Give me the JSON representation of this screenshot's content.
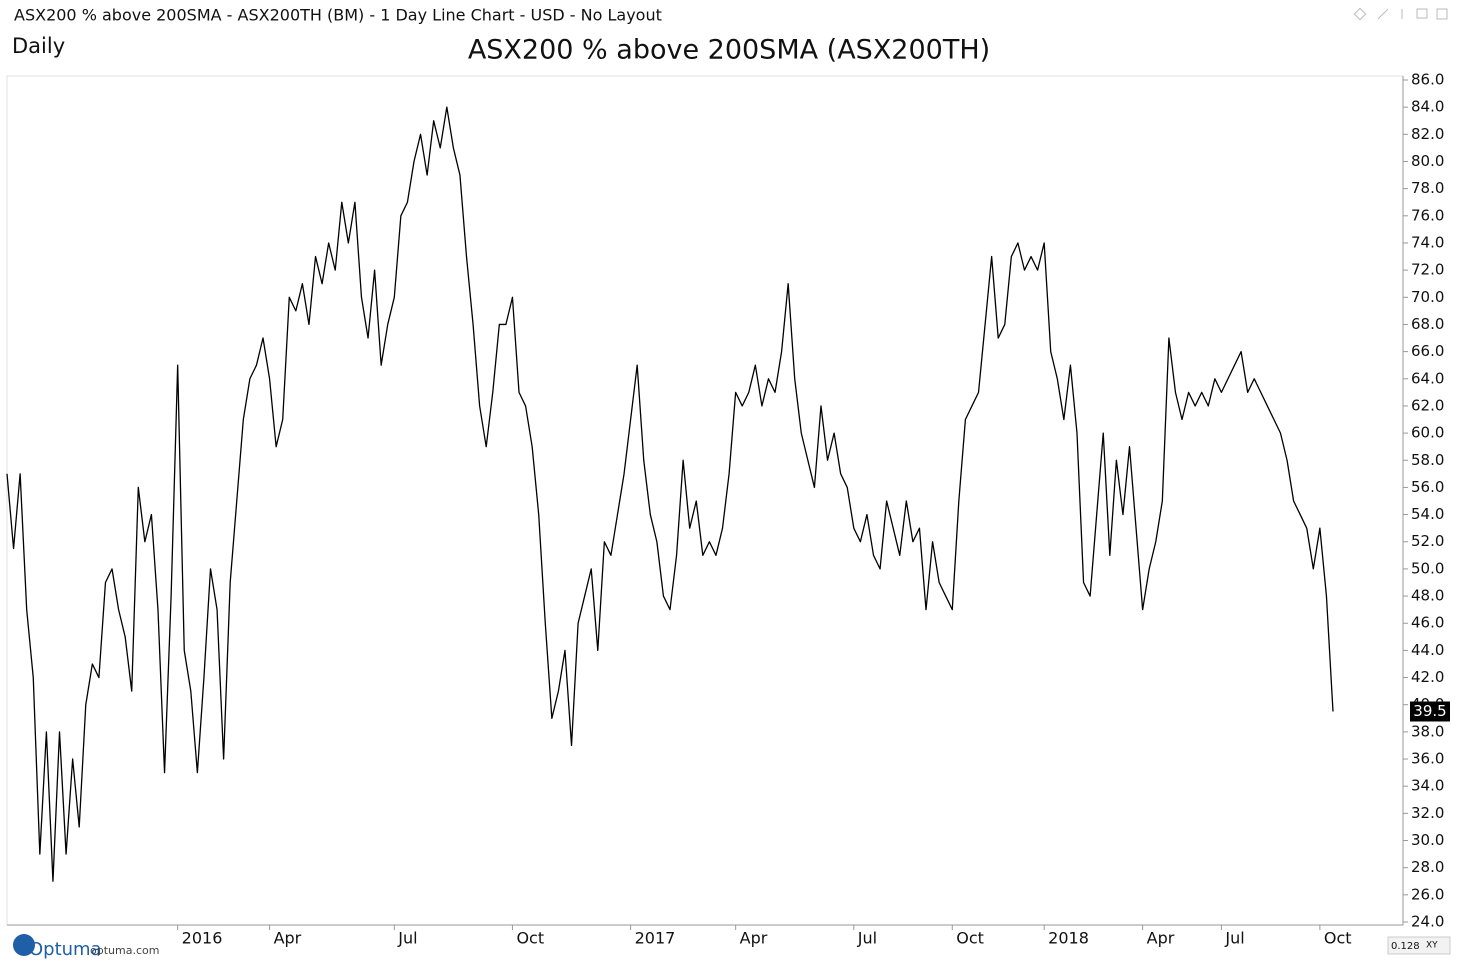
{
  "window": {
    "caption": "ASX200 % above 200SMA - ASX200TH (BM) - 1 Day Line Chart - USD - No Layout",
    "timeframe": "Daily"
  },
  "footer": {
    "brand": "Optuma",
    "site": "optuma.com",
    "scale": "0.128",
    "mode": "XY"
  },
  "chart_data": {
    "type": "line",
    "title": "ASX200 % above 200SMA (ASX200TH)",
    "color": "#000000",
    "categories": [
      null,
      null,
      null,
      null,
      null,
      null,
      null,
      null,
      null,
      null,
      null,
      null,
      null,
      null,
      null,
      null,
      null,
      null,
      null,
      null,
      null,
      null,
      null,
      null,
      null,
      null,
      "2016",
      null,
      null,
      null,
      null,
      null,
      null,
      null,
      null,
      null,
      null,
      null,
      null,
      null,
      "Apr",
      null,
      null,
      null,
      null,
      null,
      null,
      null,
      null,
      null,
      null,
      null,
      null,
      null,
      null,
      null,
      null,
      null,
      null,
      "Jul",
      null,
      null,
      null,
      null,
      null,
      null,
      null,
      null,
      null,
      null,
      null,
      null,
      null,
      null,
      null,
      null,
      null,
      "Oct",
      null,
      null,
      null,
      null,
      null,
      null,
      null,
      null,
      null,
      null,
      null,
      null,
      null,
      null,
      null,
      null,
      null,
      "2017",
      null,
      null,
      null,
      null,
      null,
      null,
      null,
      null,
      null,
      null,
      null,
      null,
      null,
      null,
      null,
      "Apr",
      null,
      null,
      null,
      null,
      null,
      null,
      null,
      null,
      null,
      null,
      null,
      null,
      null,
      null,
      null,
      null,
      null,
      "Jul",
      null,
      null,
      null,
      null,
      null,
      null,
      null,
      null,
      null,
      null,
      null,
      null,
      null,
      null,
      "Oct",
      null,
      null,
      null,
      null,
      null,
      null,
      null,
      null,
      null,
      null,
      null,
      null,
      null,
      "2018",
      null,
      null,
      null,
      null,
      null,
      null,
      null,
      null,
      null,
      null,
      null,
      null,
      null,
      null,
      "Apr",
      null,
      null,
      null,
      null,
      null,
      null,
      null,
      null,
      null,
      null,
      null,
      "Jul",
      null,
      null,
      null,
      null,
      null,
      null,
      null,
      null,
      null,
      null,
      null,
      null,
      null,
      null,
      "Oct",
      null,
      null
    ],
    "values": [
      57,
      51.5,
      57,
      47,
      42,
      29,
      38,
      27,
      38,
      29,
      36,
      31,
      40,
      43,
      42,
      49,
      50,
      47,
      45,
      41,
      56,
      52,
      54,
      47,
      35,
      48,
      65,
      44,
      41,
      35,
      42,
      50,
      47,
      36,
      49,
      55,
      61,
      64,
      65,
      67,
      64,
      59,
      61,
      70,
      69,
      71,
      68,
      73,
      71,
      74,
      72,
      77,
      74,
      77,
      70,
      67,
      72,
      65,
      68,
      70,
      76,
      77,
      80,
      82,
      79,
      83,
      81,
      84,
      81,
      79,
      73,
      68,
      62,
      59,
      63,
      68,
      68,
      70,
      63,
      62,
      59,
      54,
      46,
      39,
      41,
      44,
      37,
      46,
      48,
      50,
      44,
      52,
      51,
      54,
      57,
      61,
      65,
      58,
      54,
      52,
      48,
      47,
      51,
      58,
      53,
      55,
      51,
      52,
      51,
      53,
      57,
      63,
      62,
      63,
      65,
      62,
      64,
      63,
      66,
      71,
      64,
      60,
      58,
      56,
      62,
      58,
      60,
      57,
      56,
      53,
      52,
      54,
      51,
      50,
      55,
      53,
      51,
      55,
      52,
      53,
      47,
      52,
      49,
      48,
      47,
      55,
      61,
      62,
      63,
      68,
      73,
      67,
      68,
      73,
      74,
      72,
      73,
      72,
      74,
      66,
      64,
      61,
      65,
      60,
      49,
      48,
      54,
      60,
      51,
      58,
      54,
      59,
      53,
      47,
      50,
      52,
      55,
      67,
      63,
      61,
      63,
      62,
      63,
      62,
      64,
      63,
      64,
      65,
      66,
      63,
      64,
      63,
      62,
      61,
      60,
      58,
      55,
      54,
      53,
      50,
      53,
      48,
      39.5
    ],
    "ylim": [
      24,
      86
    ],
    "yticks": [
      {
        "value": 24,
        "label": "24.0"
      },
      {
        "value": 26,
        "label": "26.0"
      },
      {
        "value": 28,
        "label": "28.0"
      },
      {
        "value": 30,
        "label": "30.0"
      },
      {
        "value": 32,
        "label": "32.0"
      },
      {
        "value": 34,
        "label": "34.0"
      },
      {
        "value": 36,
        "label": "36.0"
      },
      {
        "value": 38,
        "label": "38.0"
      },
      {
        "value": 40,
        "label": "40.0"
      },
      {
        "value": 42,
        "label": "42.0"
      },
      {
        "value": 44,
        "label": "44.0"
      },
      {
        "value": 46,
        "label": "46.0"
      },
      {
        "value": 48,
        "label": "48.0"
      },
      {
        "value": 50,
        "label": "50.0"
      },
      {
        "value": 52,
        "label": "52.0"
      },
      {
        "value": 54,
        "label": "54.0"
      },
      {
        "value": 56,
        "label": "56.0"
      },
      {
        "value": 58,
        "label": "58.0"
      },
      {
        "value": 60,
        "label": "60.0"
      },
      {
        "value": 62,
        "label": "62.0"
      },
      {
        "value": 64,
        "label": "64.0"
      },
      {
        "value": 66,
        "label": "66.0"
      },
      {
        "value": 68,
        "label": "68.0"
      },
      {
        "value": 70,
        "label": "70.0"
      },
      {
        "value": 72,
        "label": "72.0"
      },
      {
        "value": 74,
        "label": "74.0"
      },
      {
        "value": 76,
        "label": "76.0"
      },
      {
        "value": 78,
        "label": "78.0"
      },
      {
        "value": 80,
        "label": "80.0"
      },
      {
        "value": 82,
        "label": "82.0"
      },
      {
        "value": 84,
        "label": "84.0"
      },
      {
        "value": 86,
        "label": "86.0"
      }
    ],
    "grid": false
  }
}
